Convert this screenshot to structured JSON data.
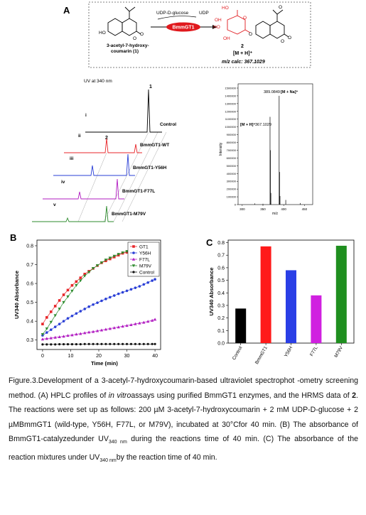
{
  "panel_a": {
    "label": "A",
    "scheme": {
      "substrate_name_line1": "3-acetyl-7-hydroxy-",
      "substrate_name_line2": "coumarin (1)",
      "donor": "UDP-D-glucose",
      "byproduct": "UDP",
      "enzyme": "BmmGT1",
      "product_number": "2",
      "ion": "[M + H]⁺",
      "mz_calc": "m/z calc: 367.1029",
      "atoms": {
        "ho": "HO",
        "o": "O",
        "o2": "O",
        "oh": "OH",
        "ho2": "HO",
        "ho3": "HO",
        "oh2": "OH",
        "o3": "O",
        "o4": "O",
        "o5": "O",
        "o6": "O",
        "o7": "O"
      }
    },
    "hplc": {
      "title": "UV at 340 nm",
      "peak_label_1": "1",
      "peak_label_2": "2",
      "traces": [
        {
          "roman": "i",
          "name": "Control",
          "color": "#000000"
        },
        {
          "roman": "ii",
          "name": "BmmGT1-WT",
          "color": "#e8262a"
        },
        {
          "roman": "iii",
          "name": "BmmGT1-Y56H",
          "color": "#2a3fd6"
        },
        {
          "roman": "iv",
          "name": "BmmGT1-F77L",
          "color": "#b21ec2"
        },
        {
          "roman": "v",
          "name": "BmmGT1-M79V",
          "color": "#2e8b2e"
        }
      ]
    },
    "ms": {
      "ylabel": "Intensity",
      "xlabel": "m/z",
      "yticks": [
        "0",
        "100000",
        "200000",
        "300000",
        "400000",
        "500000",
        "600000",
        "700000",
        "800000",
        "900000",
        "1000000",
        "1100000",
        "1200000",
        "1300000",
        "1400000",
        "1500000"
      ],
      "xticks": [
        "300",
        "350",
        "400",
        "450"
      ],
      "peak_1_mz": "389.0849",
      "peak_1_ion": "[M + Na]⁺",
      "peak_2_ion": "[M + H]⁺",
      "peak_2_mz": "367.1029"
    }
  },
  "chart_data": [
    {
      "panel": "B",
      "type": "line",
      "xlabel": "Time (min)",
      "ylabel": "UV340 Absorbance",
      "xlim": [
        -2,
        42
      ],
      "ylim": [
        0.25,
        0.83
      ],
      "xticks": [
        "0",
        "10",
        "20",
        "30",
        "40"
      ],
      "yticks": [
        "0.3",
        "0.4",
        "0.5",
        "0.6",
        "0.7",
        "0.8"
      ],
      "legend_position": "top-right",
      "x": [
        0,
        1.5,
        3,
        4.5,
        6,
        7.5,
        9,
        10.5,
        12,
        13.5,
        15,
        16.5,
        18,
        19.5,
        21,
        22.5,
        24,
        25.5,
        27,
        28.5,
        30,
        31.5,
        33,
        34.5,
        36,
        37.5,
        39,
        40
      ],
      "series": [
        {
          "name": "GT1",
          "color": "#e8262a",
          "marker": "square",
          "values": [
            0.385,
            0.42,
            0.45,
            0.48,
            0.51,
            0.54,
            0.565,
            0.59,
            0.61,
            0.63,
            0.65,
            0.665,
            0.68,
            0.695,
            0.71,
            0.72,
            0.73,
            0.74,
            0.75,
            0.76,
            0.765,
            0.772,
            0.778,
            0.785,
            0.79,
            0.795,
            0.8,
            0.805
          ]
        },
        {
          "name": "Y56H",
          "color": "#2a3fd6",
          "marker": "circle",
          "values": [
            0.325,
            0.34,
            0.355,
            0.37,
            0.385,
            0.4,
            0.415,
            0.428,
            0.441,
            0.453,
            0.465,
            0.477,
            0.488,
            0.498,
            0.508,
            0.518,
            0.527,
            0.536,
            0.545,
            0.553,
            0.561,
            0.569,
            0.577,
            0.585,
            0.595,
            0.605,
            0.615,
            0.622
          ]
        },
        {
          "name": "F77L",
          "color": "#b21ec2",
          "marker": "triangle",
          "values": [
            0.305,
            0.308,
            0.311,
            0.314,
            0.317,
            0.32,
            0.324,
            0.327,
            0.331,
            0.334,
            0.338,
            0.342,
            0.345,
            0.349,
            0.353,
            0.357,
            0.361,
            0.365,
            0.369,
            0.373,
            0.377,
            0.381,
            0.386,
            0.39,
            0.394,
            0.399,
            0.404,
            0.41
          ]
        },
        {
          "name": "M79V",
          "color": "#2e8b2e",
          "marker": "triangle-down",
          "values": [
            0.33,
            0.36,
            0.395,
            0.43,
            0.465,
            0.5,
            0.53,
            0.56,
            0.59,
            0.615,
            0.64,
            0.66,
            0.68,
            0.695,
            0.71,
            0.725,
            0.735,
            0.745,
            0.755,
            0.763,
            0.77,
            0.777,
            0.783,
            0.789,
            0.794,
            0.798,
            0.802,
            0.806
          ]
        },
        {
          "name": "Control",
          "color": "#111111",
          "marker": "star",
          "values": [
            0.277,
            0.277,
            0.277,
            0.277,
            0.278,
            0.278,
            0.278,
            0.278,
            0.278,
            0.278,
            0.279,
            0.279,
            0.279,
            0.279,
            0.279,
            0.279,
            0.279,
            0.279,
            0.279,
            0.279,
            0.279,
            0.279,
            0.279,
            0.279,
            0.279,
            0.279,
            0.279,
            0.279
          ]
        }
      ]
    },
    {
      "panel": "C",
      "type": "bar",
      "ylabel": "UV340 Absorbance",
      "ylim": [
        0,
        0.82
      ],
      "yticks": [
        "0.0",
        "0.1",
        "0.2",
        "0.3",
        "0.4",
        "0.5",
        "0.6",
        "0.7",
        "0.8"
      ],
      "categories": [
        "Control",
        "BmmGT1",
        "Y56H",
        "F77L",
        "M79V"
      ],
      "values": [
        0.275,
        0.77,
        0.58,
        0.38,
        0.775
      ],
      "colors": [
        "#000000",
        "#ff1a1a",
        "#2a3fe6",
        "#d020e0",
        "#1f8f1f"
      ]
    }
  ],
  "panel_labels": {
    "b": "B",
    "c": "C"
  },
  "caption": {
    "p1": "Figure.3.Development of a 3-acetyl-7-hydroxycoumarin-based ultraviolet spectrophot -ometry screening method. (A) HPLC profiles of ",
    "p1_italic": "in vitro",
    "p2": "assays using purified BmmGT1 enzymes, and the HRMS data of ",
    "p2_bold": "2",
    "p3": ". The reactions were set up as follows: 200 µM 3-acetyl-7-hydroxycoumarin + 2 mM UDP-D-glucose + 2 µMBmmGT1 (wild-type, Y56H, F77L, or M79V), incubated at 30°Cfor 40 min. (B) The absorbance of BmmGT1-catalyzedunder UV",
    "p3_sub": "340 nm",
    "p4": " during the reactions time of 40 min. (C) The absorbance of the reaction mixtures under UV",
    "p4_sub": "340 nm",
    "p5": "by the reaction time of 40 min."
  }
}
